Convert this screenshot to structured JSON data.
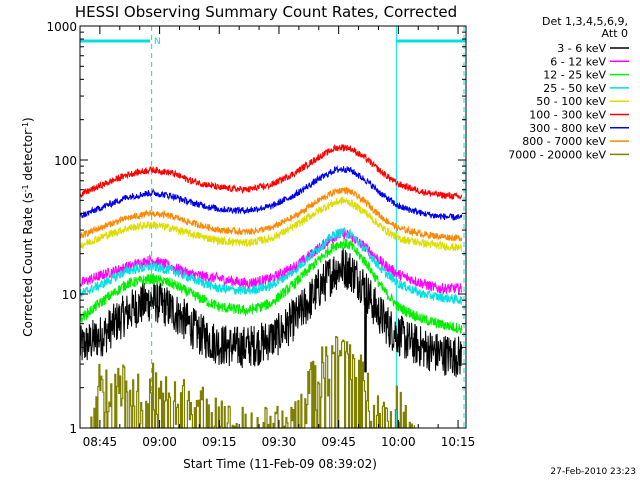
{
  "chart_data": {
    "type": "line",
    "title": "HESSI Observing Summary Count Rates, Corrected",
    "xlabel": "Start Time (11-Feb-09 08:39:02)",
    "ylabel_main": "Corrected Count Rate (s",
    "ylabel_sup1": "-1",
    "ylabel_mid": " detector",
    "ylabel_sup2": "-1",
    "ylabel_end": ")",
    "x_scale": "time_minutes_from_0800",
    "xlim": [
      40,
      137
    ],
    "ylim": [
      1,
      1000
    ],
    "y_scale": "log",
    "x_ticks": [
      {
        "value": 45,
        "label": "08:45"
      },
      {
        "value": 60,
        "label": "09:00"
      },
      {
        "value": 75,
        "label": "09:15"
      },
      {
        "value": 90,
        "label": "09:30"
      },
      {
        "value": 105,
        "label": "09:45"
      },
      {
        "value": 120,
        "label": "10:00"
      },
      {
        "value": 135,
        "label": "10:15"
      }
    ],
    "y_ticks": [
      {
        "value": 1,
        "label": "1"
      },
      {
        "value": 10,
        "label": "10"
      },
      {
        "value": 100,
        "label": "100"
      },
      {
        "value": 1000,
        "label": "1000"
      }
    ],
    "legend_header": [
      "Det 1,3,4,5,6,9,",
      "Att 0"
    ],
    "legend_placement": "top-right outside",
    "night_bars": [
      {
        "start": 40,
        "end": 57.6,
        "label": "N"
      },
      {
        "start": 119.6,
        "end": 137,
        "label": ""
      }
    ],
    "vlines_dashed": [
      58,
      136.5
    ],
    "vlines_solid": [
      119.5
    ],
    "vline_color": "#00e0e0",
    "series": [
      {
        "name": "3 - 6 keV",
        "color": "#000000",
        "noise": 0.32,
        "gap_after": 111.5,
        "points": [
          [
            40,
            4.0
          ],
          [
            46,
            5.0
          ],
          [
            50,
            6.5
          ],
          [
            54,
            8.0
          ],
          [
            58,
            9.0
          ],
          [
            62,
            8.0
          ],
          [
            66,
            6.5
          ],
          [
            70,
            5.0
          ],
          [
            75,
            4.2
          ],
          [
            80,
            4.0
          ],
          [
            85,
            4.2
          ],
          [
            90,
            5.0
          ],
          [
            95,
            7.0
          ],
          [
            100,
            11.0
          ],
          [
            104,
            15.0
          ],
          [
            106,
            16.0
          ],
          [
            108,
            15.0
          ],
          [
            111,
            12.0
          ],
          [
            114,
            8.0
          ],
          [
            118,
            5.5
          ],
          [
            122,
            4.5
          ],
          [
            126,
            4.0
          ],
          [
            130,
            3.6
          ],
          [
            136,
            3.4
          ]
        ]
      },
      {
        "name": "6 - 12 keV",
        "color": "#ff00ff",
        "noise": 0.08,
        "points": [
          [
            40,
            12
          ],
          [
            46,
            14
          ],
          [
            52,
            16
          ],
          [
            58,
            18
          ],
          [
            63,
            16
          ],
          [
            68,
            14
          ],
          [
            75,
            13
          ],
          [
            82,
            12
          ],
          [
            88,
            13
          ],
          [
            94,
            16
          ],
          [
            100,
            22
          ],
          [
            104,
            27
          ],
          [
            106,
            28
          ],
          [
            108,
            27
          ],
          [
            112,
            22
          ],
          [
            116,
            17
          ],
          [
            120,
            14
          ],
          [
            126,
            12
          ],
          [
            130,
            11
          ],
          [
            136,
            11
          ]
        ]
      },
      {
        "name": "12 - 25 keV",
        "color": "#00ee00",
        "noise": 0.08,
        "points": [
          [
            40,
            6.5
          ],
          [
            46,
            9
          ],
          [
            52,
            12
          ],
          [
            58,
            13
          ],
          [
            63,
            12
          ],
          [
            68,
            10
          ],
          [
            75,
            8
          ],
          [
            82,
            7.5
          ],
          [
            88,
            8.5
          ],
          [
            94,
            12
          ],
          [
            100,
            18
          ],
          [
            104,
            23
          ],
          [
            106,
            24
          ],
          [
            108,
            23
          ],
          [
            112,
            17
          ],
          [
            116,
            11
          ],
          [
            120,
            8
          ],
          [
            126,
            6.5
          ],
          [
            130,
            6
          ],
          [
            136,
            5.5
          ]
        ]
      },
      {
        "name": "25 - 50 keV",
        "color": "#00e0e0",
        "noise": 0.07,
        "points": [
          [
            40,
            10
          ],
          [
            46,
            12
          ],
          [
            52,
            15
          ],
          [
            58,
            16
          ],
          [
            63,
            15
          ],
          [
            68,
            13
          ],
          [
            75,
            11
          ],
          [
            82,
            10.5
          ],
          [
            88,
            11.5
          ],
          [
            94,
            15
          ],
          [
            100,
            22
          ],
          [
            104,
            28
          ],
          [
            106,
            29
          ],
          [
            108,
            28
          ],
          [
            112,
            21
          ],
          [
            116,
            15
          ],
          [
            120,
            12
          ],
          [
            126,
            10
          ],
          [
            130,
            9.5
          ],
          [
            136,
            9
          ]
        ]
      },
      {
        "name": "50 - 100 keV",
        "color": "#dddd00",
        "noise": 0.06,
        "points": [
          [
            40,
            23
          ],
          [
            46,
            27
          ],
          [
            52,
            31
          ],
          [
            58,
            33
          ],
          [
            63,
            31
          ],
          [
            68,
            28
          ],
          [
            75,
            25
          ],
          [
            82,
            24
          ],
          [
            88,
            26
          ],
          [
            94,
            32
          ],
          [
            100,
            42
          ],
          [
            104,
            48
          ],
          [
            106,
            50
          ],
          [
            108,
            48
          ],
          [
            112,
            40
          ],
          [
            116,
            31
          ],
          [
            120,
            26
          ],
          [
            126,
            24
          ],
          [
            130,
            23
          ],
          [
            136,
            22
          ]
        ]
      },
      {
        "name": "100 - 300 keV",
        "color": "#ff0000",
        "noise": 0.05,
        "points": [
          [
            40,
            55
          ],
          [
            46,
            66
          ],
          [
            52,
            78
          ],
          [
            58,
            85
          ],
          [
            63,
            80
          ],
          [
            68,
            70
          ],
          [
            75,
            62
          ],
          [
            82,
            60
          ],
          [
            88,
            65
          ],
          [
            94,
            80
          ],
          [
            100,
            105
          ],
          [
            104,
            122
          ],
          [
            106,
            125
          ],
          [
            108,
            122
          ],
          [
            112,
            102
          ],
          [
            116,
            80
          ],
          [
            120,
            66
          ],
          [
            126,
            58
          ],
          [
            130,
            55
          ],
          [
            136,
            53
          ]
        ]
      },
      {
        "name": "300 - 800 keV",
        "color": "#0000ee",
        "noise": 0.05,
        "points": [
          [
            40,
            38
          ],
          [
            46,
            45
          ],
          [
            52,
            53
          ],
          [
            58,
            57
          ],
          [
            63,
            54
          ],
          [
            68,
            48
          ],
          [
            75,
            43
          ],
          [
            82,
            42
          ],
          [
            88,
            45
          ],
          [
            94,
            55
          ],
          [
            100,
            72
          ],
          [
            104,
            84
          ],
          [
            106,
            86
          ],
          [
            108,
            84
          ],
          [
            112,
            70
          ],
          [
            116,
            55
          ],
          [
            120,
            45
          ],
          [
            126,
            40
          ],
          [
            130,
            38
          ],
          [
            136,
            37
          ]
        ]
      },
      {
        "name": "800 - 7000 keV",
        "color": "#ff8800",
        "noise": 0.05,
        "points": [
          [
            40,
            27
          ],
          [
            46,
            32
          ],
          [
            52,
            37
          ],
          [
            58,
            40
          ],
          [
            63,
            38
          ],
          [
            68,
            34
          ],
          [
            75,
            30
          ],
          [
            82,
            29
          ],
          [
            88,
            31
          ],
          [
            94,
            38
          ],
          [
            100,
            50
          ],
          [
            104,
            58
          ],
          [
            106,
            60
          ],
          [
            108,
            58
          ],
          [
            112,
            48
          ],
          [
            116,
            37
          ],
          [
            120,
            31
          ],
          [
            126,
            28
          ],
          [
            130,
            27
          ],
          [
            136,
            26
          ]
        ]
      },
      {
        "name": "7000 - 20000 keV",
        "color": "#808000",
        "noise": 0,
        "points": [
          [
            42.5,
            1.2
          ],
          [
            44,
            2.2
          ],
          [
            46,
            2.0
          ],
          [
            48,
            1.6
          ],
          [
            50,
            2.2
          ],
          [
            52,
            1.8
          ],
          [
            54,
            2.0
          ],
          [
            56,
            1.5
          ],
          [
            58,
            2.3
          ],
          [
            60,
            1.6
          ],
          [
            62,
            2.0
          ],
          [
            64,
            1.5
          ],
          [
            66,
            1.8
          ],
          [
            68,
            1.4
          ],
          [
            70,
            1.6
          ],
          [
            72,
            1.2
          ],
          [
            74,
            1.5
          ],
          [
            76,
            1.2
          ],
          [
            78,
            1.0
          ],
          [
            80,
            1.0
          ],
          [
            92,
            1.0
          ],
          [
            95,
            1.4
          ],
          [
            97,
            2.0
          ],
          [
            99,
            2.3
          ],
          [
            100,
            2.7
          ],
          [
            102,
            3.0
          ],
          [
            104,
            3.4
          ],
          [
            106,
            3.6
          ],
          [
            107,
            3.8
          ],
          [
            108,
            3.4
          ],
          [
            110,
            2.7
          ],
          [
            112,
            2.0
          ],
          [
            114,
            1.5
          ],
          [
            116,
            1.2
          ],
          [
            118,
            1.2
          ],
          [
            120,
            1.5
          ],
          [
            122,
            1.2
          ],
          [
            124,
            1.0
          ]
        ]
      }
    ]
  },
  "footer": {
    "date_stamp": "27-Feb-2010 23:23"
  }
}
